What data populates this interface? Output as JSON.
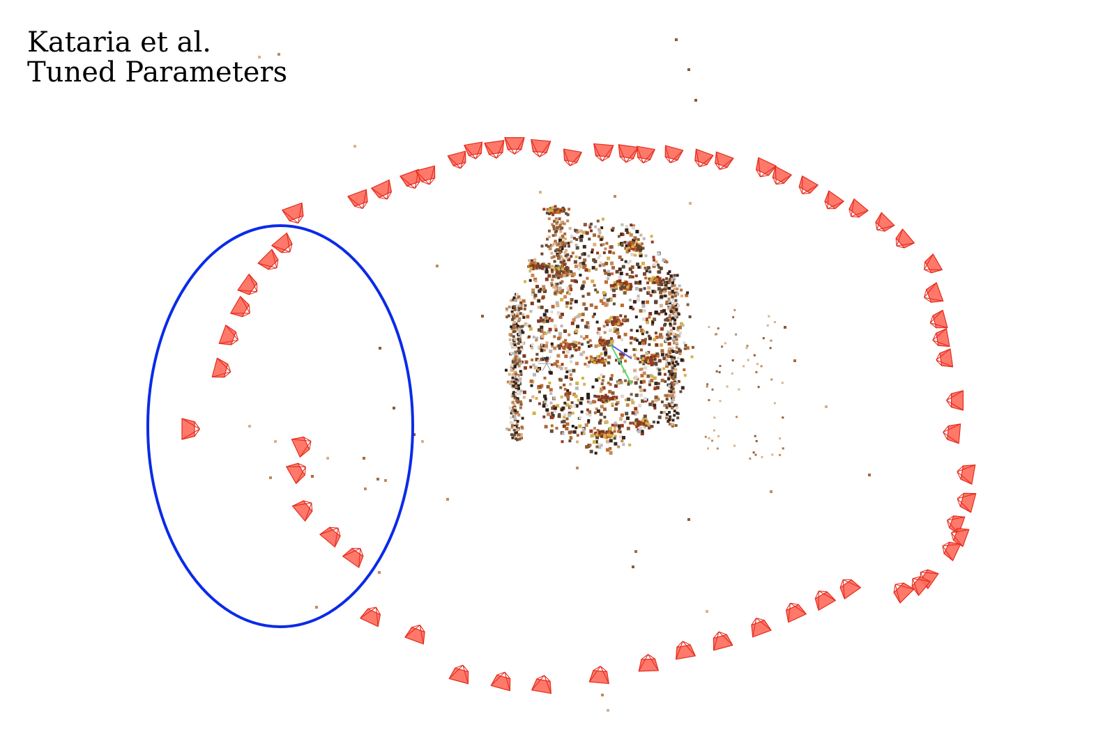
{
  "caption": {
    "line1": "Kataria et al.",
    "line2": "Tuned Parameters"
  },
  "colors": {
    "background": "#ffffff",
    "camera_stroke": "#e32b1e",
    "camera_fill": "#ff6a5a",
    "highlight_ellipse": "#0a2be8",
    "axis_x": "#ffffff",
    "axis_y": "#58d86a",
    "axis_z": "#5c5cf0",
    "point_tints": [
      "#3a2a22",
      "#6b4a32",
      "#8c5a34",
      "#a86a3c",
      "#c28a5a",
      "#d9b28a",
      "#b9b9b9",
      "#e0d8d0",
      "#2a1e18",
      "#7d3a22",
      "#c26a2a",
      "#d4b24a",
      "#9a3a20",
      "#5a4a3a"
    ]
  },
  "icons": {
    "camera_frustum": "camera-frustum-icon",
    "origin_axes": "axes-gizmo-icon"
  }
}
